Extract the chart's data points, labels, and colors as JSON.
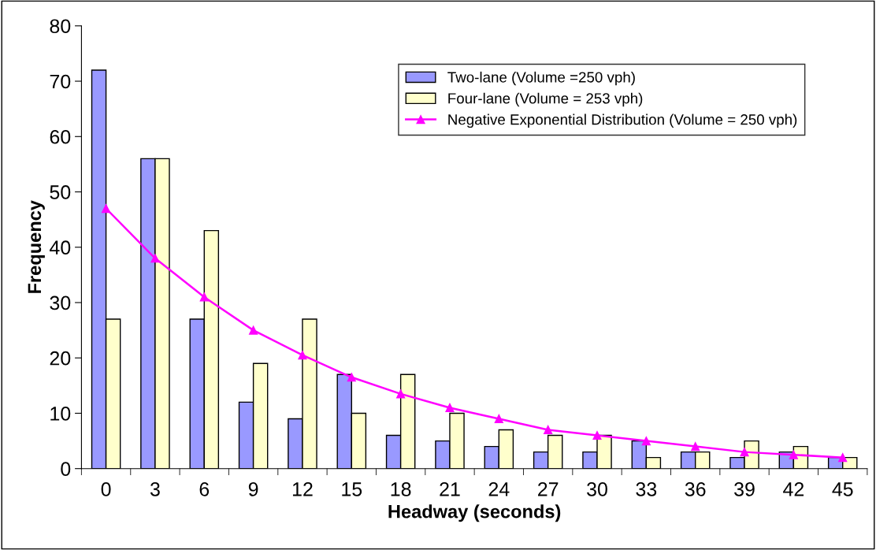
{
  "chart_data": {
    "type": "bar",
    "xlabel": "Headway (seconds)",
    "ylabel": "Frequency",
    "categories": [
      "0",
      "3",
      "6",
      "9",
      "12",
      "15",
      "18",
      "21",
      "24",
      "27",
      "30",
      "33",
      "36",
      "39",
      "42",
      "45"
    ],
    "series": [
      {
        "name": "Two-lane (Volume =250 vph)",
        "color": "#9999ff",
        "values": [
          72,
          56,
          27,
          12,
          9,
          17,
          6,
          5,
          4,
          3,
          3,
          5,
          3,
          2,
          3,
          2
        ]
      },
      {
        "name": "Four-lane (Volume = 253 vph)",
        "color": "#ffffcc",
        "values": [
          27,
          56,
          43,
          19,
          27,
          10,
          17,
          10,
          7,
          6,
          6,
          2,
          3,
          5,
          4,
          2
        ]
      },
      {
        "name": "Negative Exponential Distribution (Volume = 250 vph)",
        "type": "line",
        "color": "#ff00ff",
        "marker": "triangle",
        "values": [
          47,
          38,
          31,
          25,
          20.5,
          16.5,
          13.5,
          11,
          9,
          7,
          6,
          5,
          4,
          3,
          2.5,
          2
        ]
      }
    ],
    "ylim": [
      0,
      80
    ],
    "yticks": [
      0,
      10,
      20,
      30,
      40,
      50,
      60,
      70,
      80
    ],
    "grid": false,
    "legend": "top right"
  }
}
